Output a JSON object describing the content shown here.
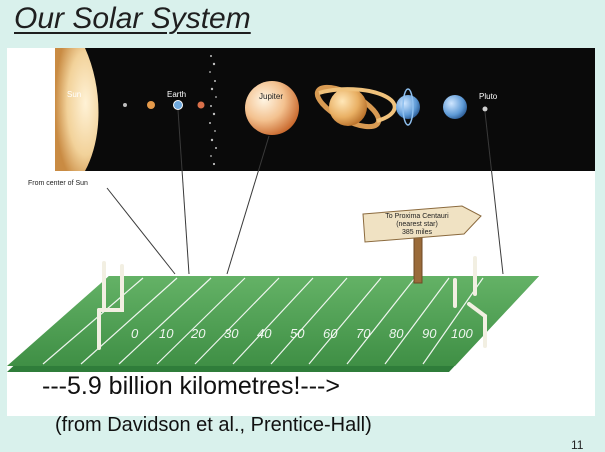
{
  "slide": {
    "title": "Our Solar System",
    "caption": "---5.9 billion kilometres!--->",
    "source": "(from Davidson et al., Prentice-Hall)",
    "page_number": "11"
  },
  "diagram": {
    "labels": {
      "sun": "Sun",
      "earth": "Earth",
      "jupiter": "Jupiter",
      "pluto": "Pluto",
      "from_center": "From center of Sun"
    },
    "sign": {
      "line1": "To Proxima Centauri",
      "line2": "(nearest star)",
      "line3": "385 miles"
    },
    "yard_markers": [
      "0",
      "10",
      "20",
      "30",
      "40",
      "50",
      "60",
      "70",
      "80",
      "90",
      "100"
    ],
    "colors": {
      "space": "#0a0a0a",
      "field": "#4f9e52",
      "field_side": "#2f7d3a",
      "sun": "#f3d7a1",
      "jupiter": "#e9a86a",
      "saturn": "#e7b061",
      "uranus": "#5e9ad6",
      "neptune": "#5b90c8"
    }
  }
}
